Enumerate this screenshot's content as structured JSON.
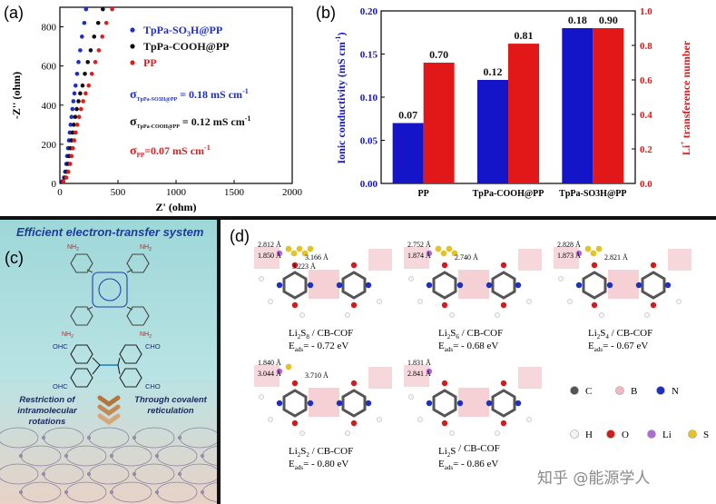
{
  "panel_a": {
    "label": "(a)",
    "legend": [
      "TpPa-SO",
      "3",
      "H@PP",
      "TpPa-COOH@PP",
      "PP"
    ],
    "sigma_1": "σ",
    "sigma_1_sub": "TpPa-SO3H@PP",
    "sigma_1_val": " = 0.18 mS cm",
    "sigma_1_sup": "-1",
    "sigma_2": "σ",
    "sigma_2_sub": "TpPa-COOH@PP",
    "sigma_2_val": " = 0.12 mS cm",
    "sigma_2_sup": "-1",
    "sigma_3": "σ",
    "sigma_3_sub": "PP",
    "sigma_3_val": "=0.07 mS cm",
    "sigma_3_sup": "-1"
  },
  "panel_b": {
    "label": "(b)"
  },
  "panel_c": {
    "label": "(c)",
    "title": "Efficient electron-transfer system",
    "cho": "CHO",
    "ohc": "OHC",
    "nh2": "NH",
    "caption_left": "Restriction of intramolecular rotations",
    "caption_right": "Through covalent reticulation"
  },
  "panel_d": {
    "label": "(d)",
    "structures": [
      {
        "formula": "Li",
        "sub": "2",
        "s": "S",
        "ssub": "8",
        "rest": " / CB-COF",
        "eads": "E",
        "eads_sub": "ads",
        "eads_val": "= - 0.72 eV",
        "d1": "2.812 Å",
        "d2": "1.850 Å",
        "d3": "3.166 Å",
        "d4": "3.223 Å"
      },
      {
        "formula": "Li",
        "sub": "2",
        "s": "S",
        "ssub": "6",
        "rest": " / CB-COF",
        "eads": "E",
        "eads_sub": "ads",
        "eads_val": "= - 0.68 eV",
        "d1": "2.752 Å",
        "d2": "1.874 Å",
        "d3": "2.740 Å"
      },
      {
        "formula": "Li",
        "sub": "2",
        "s": "S",
        "ssub": "4",
        "rest": " / CB-COF",
        "eads": "E",
        "eads_sub": "ads",
        "eads_val": "= - 0.67 eV",
        "d1": "2.828 Å",
        "d2": "1.873 Å",
        "d3": "2.821 Å"
      },
      {
        "formula": "Li",
        "sub": "2",
        "s": "S",
        "ssub": "2",
        "rest": " / CB-COF",
        "eads": "E",
        "eads_sub": "ads",
        "eads_val": "= - 0.80 eV",
        "d1": "1.840 Å",
        "d2": "3.044 Å",
        "d3": "3.710 Å"
      },
      {
        "formula": "Li",
        "sub": "2",
        "s": "S",
        "ssub": "",
        "rest": " / CB-COF",
        "eads": "E",
        "eads_sub": "ads",
        "eads_val": "= - 0.86 eV",
        "d1": "1.831 Å",
        "d2": "2.841 Å"
      }
    ],
    "atoms": [
      {
        "symbol": "C",
        "color": "#555555"
      },
      {
        "symbol": "B",
        "color": "#f0b8c0"
      },
      {
        "symbol": "N",
        "color": "#1f2fbf"
      },
      {
        "symbol": "H",
        "color": "#f4f4f4"
      },
      {
        "symbol": "O",
        "color": "#d01c1c"
      },
      {
        "symbol": "Li",
        "color": "#b06ad6"
      },
      {
        "symbol": "S",
        "color": "#e6c22a"
      }
    ]
  },
  "watermark": "知乎 @能源学人",
  "chart_data": [
    {
      "type": "scatter",
      "xlabel": "Z' (ohm)",
      "ylabel": "-Z'' (ohm)",
      "xlim": [
        0,
        2000
      ],
      "ylim": [
        0,
        900
      ],
      "xticks": [
        0,
        500,
        1000,
        1500,
        2000
      ],
      "yticks": [
        0,
        200,
        400,
        600,
        800
      ],
      "series": [
        {
          "name": "TpPa-SO3H@PP",
          "color": "#1d2fc8",
          "x": [
            20,
            35,
            45,
            55,
            62,
            70,
            78,
            85,
            92,
            100,
            108,
            116,
            125,
            135,
            148,
            160,
            175,
            190,
            210,
            225
          ],
          "y": [
            10,
            30,
            60,
            100,
            140,
            180,
            220,
            260,
            300,
            340,
            380,
            420,
            460,
            500,
            560,
            620,
            680,
            750,
            820,
            890
          ]
        },
        {
          "name": "TpPa-COOH@PP",
          "color": "#111111",
          "x": [
            25,
            45,
            58,
            70,
            80,
            90,
            100,
            110,
            120,
            132,
            145,
            160,
            175,
            195,
            215,
            240,
            265,
            295,
            330,
            370
          ],
          "y": [
            10,
            30,
            60,
            100,
            140,
            180,
            220,
            260,
            300,
            340,
            380,
            420,
            460,
            500,
            560,
            620,
            680,
            750,
            820,
            890
          ]
        },
        {
          "name": "PP",
          "color": "#e01d1d",
          "x": [
            30,
            55,
            72,
            88,
            100,
            112,
            124,
            136,
            150,
            165,
            182,
            200,
            222,
            248,
            275,
            305,
            335,
            365,
            400,
            450
          ],
          "y": [
            10,
            30,
            60,
            100,
            140,
            180,
            220,
            260,
            300,
            340,
            380,
            420,
            460,
            500,
            560,
            620,
            680,
            750,
            820,
            890
          ]
        }
      ]
    },
    {
      "type": "bar",
      "categories": [
        "PP",
        "TpPa-COOH@PP",
        "TpPa-SO3H@PP"
      ],
      "ylabel": "Ionic conductivity (mS cm",
      "ylabel_sup": "-1",
      "ylabel_end": ")",
      "y2label": "Li",
      "y2label_sup": "+",
      "y2label_end": " transference number",
      "ylim": [
        0,
        0.2
      ],
      "y2lim": [
        0,
        1.0
      ],
      "yticks": [
        "0.00",
        "0.05",
        "0.10",
        "0.15",
        "0.20"
      ],
      "y2ticks": [
        "0.0",
        "0.2",
        "0.4",
        "0.6",
        "0.8",
        "1.0"
      ],
      "series": [
        {
          "name": "Ionic conductivity",
          "color": "#1414c8",
          "axis": "left",
          "values": [
            0.07,
            0.12,
            0.18
          ],
          "labels": [
            "0.07",
            "0.12",
            "0.18"
          ]
        },
        {
          "name": "Li+ transference number",
          "color": "#e21818",
          "axis": "right",
          "values": [
            0.7,
            0.81,
            0.9
          ],
          "labels": [
            "0.70",
            "0.81",
            "0.90"
          ]
        }
      ]
    }
  ]
}
